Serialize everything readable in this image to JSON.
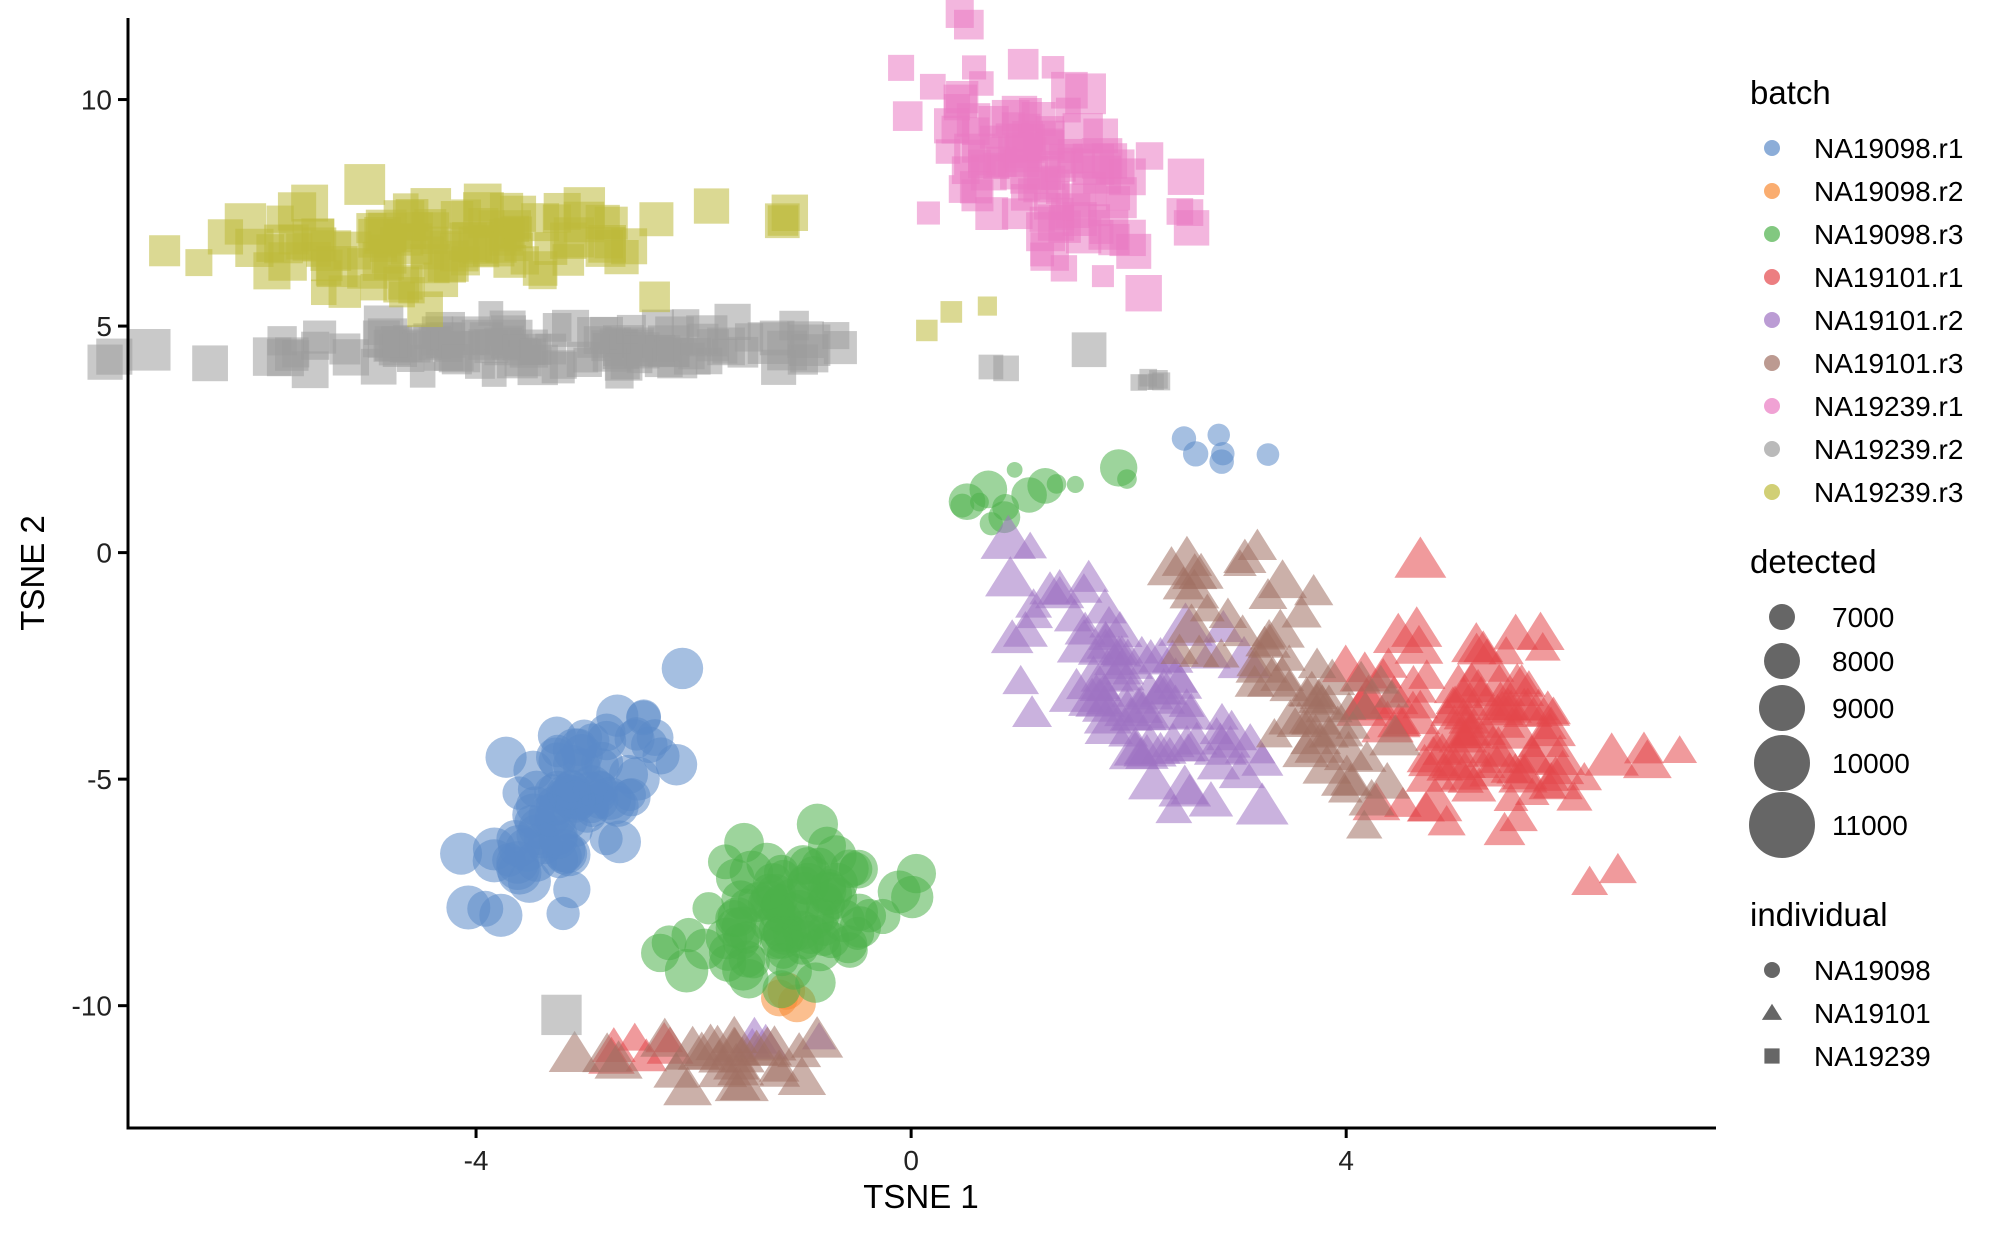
{
  "chart_data": {
    "type": "scatter",
    "xlabel": "TSNE 1",
    "ylabel": "TSNE 2",
    "xlim": [
      -7.2,
      7.4
    ],
    "ylim": [
      -12.7,
      11.8
    ],
    "xticks": [
      -4,
      0,
      4
    ],
    "yticks": [
      -10,
      -5,
      0,
      5,
      10
    ],
    "grid": false,
    "legends": {
      "batch": {
        "title": "batch",
        "entries": [
          {
            "name": "NA19098.r1",
            "color": "#5B8AC8"
          },
          {
            "name": "NA19098.r2",
            "color": "#F88A33"
          },
          {
            "name": "NA19098.r3",
            "color": "#4DB04A"
          },
          {
            "name": "NA19101.r1",
            "color": "#E4474B"
          },
          {
            "name": "NA19101.r2",
            "color": "#9E72C2"
          },
          {
            "name": "NA19101.r3",
            "color": "#A06F63"
          },
          {
            "name": "NA19239.r1",
            "color": "#E97AC2"
          },
          {
            "name": "NA19239.r2",
            "color": "#9C9C9C"
          },
          {
            "name": "NA19239.r3",
            "color": "#BDBA3A"
          }
        ]
      },
      "detected": {
        "title": "detected",
        "entries": [
          {
            "label": "7000",
            "value": 7000
          },
          {
            "label": "8000",
            "value": 8000
          },
          {
            "label": "9000",
            "value": 9000
          },
          {
            "label": "10000",
            "value": 10000
          },
          {
            "label": "11000",
            "value": 11000
          }
        ]
      },
      "individual": {
        "title": "individual",
        "entries": [
          {
            "label": "NA19098",
            "shape": "circle"
          },
          {
            "label": "NA19101",
            "shape": "triangle"
          },
          {
            "label": "NA19239",
            "shape": "square"
          }
        ]
      }
    },
    "clusters": [
      {
        "batch": "NA19098.r1",
        "individual": "NA19098",
        "n": 95,
        "cx": -3.1,
        "cy": -5.5,
        "sx": 0.4,
        "sy": 1.1,
        "corr": 0.6,
        "size": [
          9000,
          11000
        ]
      },
      {
        "batch": "NA19098.r1",
        "individual": "NA19098",
        "n": 6,
        "cx": 2.8,
        "cy": 2.3,
        "sx": 0.25,
        "sy": 0.15,
        "corr": -0.5,
        "size": [
          7000,
          8500
        ]
      },
      {
        "batch": "NA19098.r2",
        "individual": "NA19098",
        "n": 3,
        "cx": -1.2,
        "cy": -9.9,
        "sx": 0.1,
        "sy": 0.15,
        "corr": 0,
        "size": [
          9000,
          10000
        ]
      },
      {
        "batch": "NA19098.r3",
        "individual": "NA19098",
        "n": 95,
        "cx": -1.1,
        "cy": -8.0,
        "sx": 0.5,
        "sy": 0.9,
        "corr": 0.55,
        "size": [
          9000,
          11000
        ]
      },
      {
        "batch": "NA19098.r3",
        "individual": "NA19098",
        "n": 14,
        "cx": 1.3,
        "cy": 1.4,
        "sx": 0.55,
        "sy": 0.4,
        "corr": 0.8,
        "size": [
          6200,
          10000
        ]
      },
      {
        "batch": "NA19101.r1",
        "individual": "NA19101",
        "n": 105,
        "cx": 5.2,
        "cy": -3.8,
        "sx": 0.6,
        "sy": 1.2,
        "corr": -0.2,
        "size": [
          8000,
          11000
        ]
      },
      {
        "batch": "NA19101.r1",
        "individual": "NA19101",
        "n": 6,
        "cx": -2.5,
        "cy": -10.9,
        "sx": 0.25,
        "sy": 0.25,
        "corr": 0,
        "size": [
          8000,
          10000
        ]
      },
      {
        "batch": "NA19101.r2",
        "individual": "NA19101",
        "n": 90,
        "cx": 2.0,
        "cy": -2.8,
        "sx": 0.55,
        "sy": 1.3,
        "corr": -0.6,
        "size": [
          8000,
          11000
        ]
      },
      {
        "batch": "NA19101.r2",
        "individual": "NA19101",
        "n": 4,
        "cx": -1.1,
        "cy": -10.8,
        "sx": 0.2,
        "sy": 0.2,
        "corr": 0,
        "size": [
          8000,
          10000
        ]
      },
      {
        "batch": "NA19101.r3",
        "individual": "NA19101",
        "n": 65,
        "cx": 3.5,
        "cy": -2.8,
        "sx": 0.5,
        "sy": 1.4,
        "corr": -0.7,
        "size": [
          8000,
          10500
        ]
      },
      {
        "batch": "NA19101.r3",
        "individual": "NA19101",
        "n": 28,
        "cx": -1.8,
        "cy": -11.1,
        "sx": 0.45,
        "sy": 0.3,
        "corr": 0,
        "size": [
          9000,
          11000
        ]
      },
      {
        "batch": "NA19239.r1",
        "individual": "NA19239",
        "n": 105,
        "cx": 1.3,
        "cy": 8.4,
        "sx": 0.55,
        "sy": 1.1,
        "corr": -0.5,
        "size": [
          7500,
          11000
        ]
      },
      {
        "batch": "NA19239.r2",
        "individual": "NA19239",
        "n": 120,
        "cx": -3.5,
        "cy": 4.5,
        "sx": 1.6,
        "sy": 0.25,
        "corr": 0,
        "size": [
          8000,
          11000
        ]
      },
      {
        "batch": "NA19239.r2",
        "individual": "NA19239",
        "n": 6,
        "cx": 2.2,
        "cy": 3.8,
        "sx": 0.05,
        "sy": 0.03,
        "corr": 0,
        "size": [
          6000,
          7000
        ]
      },
      {
        "batch": "NA19239.r2",
        "individual": "NA19239",
        "n": 2,
        "cx": 0.8,
        "cy": 4.1,
        "sx": 0.05,
        "sy": 0.1,
        "corr": 0,
        "size": [
          8000,
          8500
        ]
      },
      {
        "batch": "NA19239.r2",
        "individual": "NA19239",
        "n": 1,
        "cx": -3.2,
        "cy": -10.2,
        "sx": 0.02,
        "sy": 0.02,
        "corr": 0,
        "size": [
          10500,
          11000
        ]
      },
      {
        "batch": "NA19239.r3",
        "individual": "NA19239",
        "n": 110,
        "cx": -4.4,
        "cy": 6.9,
        "sx": 1.2,
        "sy": 0.5,
        "corr": 0.2,
        "size": [
          8000,
          11000
        ]
      },
      {
        "batch": "NA19239.r3",
        "individual": "NA19239",
        "n": 3,
        "cx": 0.4,
        "cy": 5.4,
        "sx": 0.3,
        "sy": 0.2,
        "corr": 0,
        "size": [
          7000,
          8000
        ]
      }
    ]
  }
}
